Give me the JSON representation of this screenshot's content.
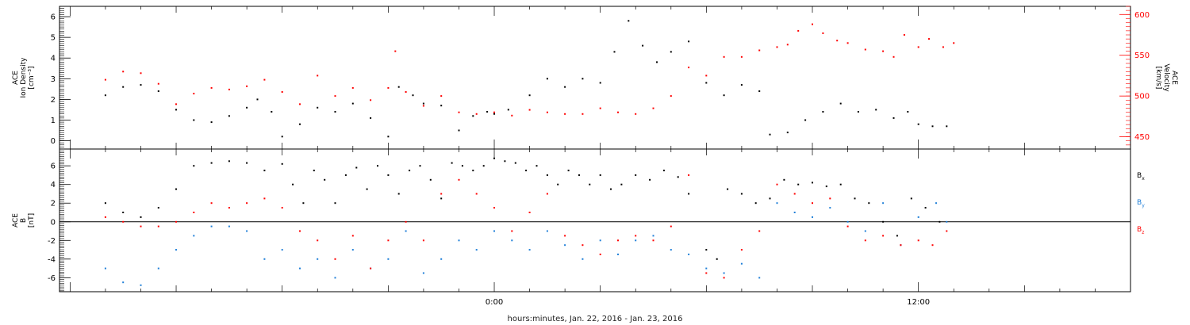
{
  "chart_data": [
    {
      "type": "scatter",
      "panel": "plasma",
      "ylabel_lines": [
        "ACE",
        "Ion Density",
        "[cm⁻³]"
      ],
      "y2label_lines": [
        "ACE",
        "Velocity",
        "[km/s]"
      ],
      "ylim": [
        -0.4,
        6.5
      ],
      "y2lim": [
        435,
        610
      ],
      "yticks": [
        0,
        1,
        2,
        3,
        4,
        5,
        6
      ],
      "y2ticks": [
        450,
        500,
        550,
        600
      ],
      "series": [
        {
          "axis": "left",
          "color": "#000000",
          "points": [
            [
              -11,
              2.2
            ],
            [
              -10.5,
              2.6
            ],
            [
              -10,
              2.7
            ],
            [
              -9.5,
              2.4
            ],
            [
              -9,
              1.5
            ],
            [
              -8.5,
              1.0
            ],
            [
              -8,
              0.9
            ],
            [
              -7.5,
              1.2
            ],
            [
              -7,
              1.6
            ],
            [
              -6.7,
              2.0
            ],
            [
              -6.3,
              1.4
            ],
            [
              -6,
              0.2
            ],
            [
              -5.5,
              0.8
            ],
            [
              -5,
              1.6
            ],
            [
              -4.5,
              1.4
            ],
            [
              -4,
              1.8
            ],
            [
              -3.5,
              1.1
            ],
            [
              -3,
              0.2
            ],
            [
              -2.7,
              2.6
            ],
            [
              -2.3,
              2.2
            ],
            [
              -2,
              1.8
            ],
            [
              -1.5,
              1.7
            ],
            [
              -1,
              0.5
            ],
            [
              -0.6,
              1.2
            ],
            [
              -0.2,
              1.4
            ],
            [
              0,
              1.3
            ],
            [
              0.4,
              1.5
            ],
            [
              1,
              2.2
            ],
            [
              1.5,
              3.0
            ],
            [
              2,
              2.6
            ],
            [
              2.5,
              3.0
            ],
            [
              3,
              2.8
            ],
            [
              3.4,
              4.3
            ],
            [
              3.8,
              5.8
            ],
            [
              4.2,
              4.6
            ],
            [
              4.6,
              3.8
            ],
            [
              5,
              4.3
            ],
            [
              5.5,
              4.8
            ],
            [
              6,
              2.8
            ],
            [
              6.5,
              2.2
            ],
            [
              7,
              2.7
            ],
            [
              7.5,
              2.4
            ],
            [
              7.8,
              0.3
            ],
            [
              8.3,
              0.4
            ],
            [
              8.8,
              1.0
            ],
            [
              9.3,
              1.4
            ],
            [
              9.8,
              1.8
            ],
            [
              10.3,
              1.4
            ],
            [
              10.8,
              1.5
            ],
            [
              11.3,
              1.1
            ],
            [
              11.7,
              1.4
            ],
            [
              12,
              0.8
            ],
            [
              12.4,
              0.7
            ],
            [
              12.8,
              0.7
            ]
          ]
        },
        {
          "axis": "right",
          "color": "#ff0000",
          "points": [
            [
              -11,
              520
            ],
            [
              -10.5,
              530
            ],
            [
              -10,
              528
            ],
            [
              -9.5,
              515
            ],
            [
              -9,
              490
            ],
            [
              -8.5,
              503
            ],
            [
              -8,
              510
            ],
            [
              -7.5,
              508
            ],
            [
              -7,
              512
            ],
            [
              -6.5,
              520
            ],
            [
              -6,
              505
            ],
            [
              -5.5,
              490
            ],
            [
              -5,
              525
            ],
            [
              -4.5,
              500
            ],
            [
              -4,
              510
            ],
            [
              -3.5,
              495
            ],
            [
              -3,
              510
            ],
            [
              -2.8,
              555
            ],
            [
              -2.5,
              505
            ],
            [
              -2,
              488
            ],
            [
              -1.5,
              500
            ],
            [
              -1,
              480
            ],
            [
              -0.5,
              478
            ],
            [
              0,
              480
            ],
            [
              0.5,
              476
            ],
            [
              1,
              483
            ],
            [
              1.5,
              480
            ],
            [
              2,
              478
            ],
            [
              2.5,
              478
            ],
            [
              3,
              485
            ],
            [
              3.5,
              480
            ],
            [
              4,
              478
            ],
            [
              4.5,
              485
            ],
            [
              5,
              500
            ],
            [
              5.5,
              535
            ],
            [
              6,
              525
            ],
            [
              6.5,
              548
            ],
            [
              7,
              548
            ],
            [
              7.5,
              556
            ],
            [
              8,
              560
            ],
            [
              8.3,
              563
            ],
            [
              8.6,
              580
            ],
            [
              9,
              588
            ],
            [
              9.3,
              577
            ],
            [
              9.7,
              568
            ],
            [
              10,
              565
            ],
            [
              10.5,
              557
            ],
            [
              11,
              555
            ],
            [
              11.3,
              548
            ],
            [
              11.6,
              575
            ],
            [
              12,
              560
            ],
            [
              12.3,
              570
            ],
            [
              12.7,
              560
            ],
            [
              13,
              565
            ]
          ]
        }
      ]
    },
    {
      "type": "scatter",
      "panel": "magnetic",
      "ylabel_lines": [
        "ACE",
        "B",
        "[nT]"
      ],
      "ylim": [
        -7.5,
        7.8
      ],
      "yticks": [
        -6,
        -4,
        -2,
        0,
        2,
        4,
        6
      ],
      "zero_line": true,
      "series": [
        {
          "name": "B",
          "sub": "x",
          "color": "#000000",
          "points": [
            [
              -11,
              2.0
            ],
            [
              -10.5,
              1.0
            ],
            [
              -10,
              0.5
            ],
            [
              -9.5,
              1.5
            ],
            [
              -9,
              3.5
            ],
            [
              -8.5,
              6.0
            ],
            [
              -8,
              6.3
            ],
            [
              -7.5,
              6.5
            ],
            [
              -7,
              6.3
            ],
            [
              -6.5,
              5.5
            ],
            [
              -6,
              6.2
            ],
            [
              -5.7,
              4.0
            ],
            [
              -5.4,
              2.0
            ],
            [
              -5.1,
              5.5
            ],
            [
              -4.8,
              4.5
            ],
            [
              -4.5,
              2.0
            ],
            [
              -4.2,
              5.0
            ],
            [
              -3.9,
              5.8
            ],
            [
              -3.6,
              3.5
            ],
            [
              -3.3,
              6.0
            ],
            [
              -3,
              5.0
            ],
            [
              -2.7,
              3.0
            ],
            [
              -2.4,
              5.5
            ],
            [
              -2.1,
              6.0
            ],
            [
              -1.8,
              4.5
            ],
            [
              -1.5,
              2.5
            ],
            [
              -1.2,
              6.3
            ],
            [
              -0.9,
              6.0
            ],
            [
              -0.6,
              5.5
            ],
            [
              -0.3,
              6.0
            ],
            [
              0,
              6.8
            ],
            [
              0.3,
              6.5
            ],
            [
              0.6,
              6.3
            ],
            [
              0.9,
              5.5
            ],
            [
              1.2,
              6.0
            ],
            [
              1.5,
              5.0
            ],
            [
              1.8,
              4.0
            ],
            [
              2.1,
              5.5
            ],
            [
              2.4,
              5.0
            ],
            [
              2.7,
              4.0
            ],
            [
              3,
              5.0
            ],
            [
              3.3,
              3.5
            ],
            [
              3.6,
              4.0
            ],
            [
              4,
              5.0
            ],
            [
              4.4,
              4.5
            ],
            [
              4.8,
              5.5
            ],
            [
              5.2,
              4.8
            ],
            [
              5.5,
              3.0
            ],
            [
              6,
              -3.0
            ],
            [
              6.3,
              -4.0
            ],
            [
              6.6,
              3.5
            ],
            [
              7,
              3.0
            ],
            [
              7.4,
              2.0
            ],
            [
              7.8,
              2.5
            ],
            [
              8.2,
              4.5
            ],
            [
              8.6,
              4.0
            ],
            [
              9,
              4.2
            ],
            [
              9.4,
              3.8
            ],
            [
              9.8,
              4.0
            ],
            [
              10.2,
              2.5
            ],
            [
              10.6,
              2.0
            ],
            [
              11,
              0.0
            ],
            [
              11.4,
              -1.5
            ],
            [
              11.8,
              2.5
            ],
            [
              12.2,
              1.5
            ],
            [
              12.6,
              0.0
            ]
          ]
        },
        {
          "name": "B",
          "sub": "y",
          "color": "#1f7fd8",
          "points": [
            [
              -11,
              -5.0
            ],
            [
              -10.5,
              -6.5
            ],
            [
              -10,
              -6.8
            ],
            [
              -9.5,
              -5.0
            ],
            [
              -9,
              -3.0
            ],
            [
              -8.5,
              -1.5
            ],
            [
              -8,
              -0.5
            ],
            [
              -7.5,
              -0.5
            ],
            [
              -7,
              -1.0
            ],
            [
              -6.5,
              -4.0
            ],
            [
              -6,
              -3.0
            ],
            [
              -5.5,
              -5.0
            ],
            [
              -5,
              -4.0
            ],
            [
              -4.5,
              -6.0
            ],
            [
              -4,
              -3.0
            ],
            [
              -3.5,
              -5.0
            ],
            [
              -3,
              -4.0
            ],
            [
              -2.5,
              -1.0
            ],
            [
              -2,
              -5.5
            ],
            [
              -1.5,
              -4.0
            ],
            [
              -1,
              -2.0
            ],
            [
              -0.5,
              -3.0
            ],
            [
              0,
              -1.0
            ],
            [
              0.5,
              -2.0
            ],
            [
              1,
              -3.0
            ],
            [
              1.5,
              -1.0
            ],
            [
              2,
              -2.5
            ],
            [
              2.5,
              -4.0
            ],
            [
              3,
              -2.0
            ],
            [
              3.5,
              -3.5
            ],
            [
              4,
              -2.0
            ],
            [
              4.5,
              -1.5
            ],
            [
              5,
              -3.0
            ],
            [
              5.5,
              -3.5
            ],
            [
              6,
              -5.0
            ],
            [
              6.5,
              -5.5
            ],
            [
              7,
              -4.5
            ],
            [
              7.5,
              -6.0
            ],
            [
              8,
              2.0
            ],
            [
              8.5,
              1.0
            ],
            [
              9,
              0.5
            ],
            [
              9.5,
              1.5
            ],
            [
              10,
              0.0
            ],
            [
              10.5,
              -1.0
            ],
            [
              11,
              2.0
            ],
            [
              11.5,
              -2.5
            ],
            [
              12,
              0.5
            ],
            [
              12.5,
              2.0
            ],
            [
              12.8,
              0.0
            ]
          ]
        },
        {
          "name": "B",
          "sub": "z",
          "color": "#ff0000",
          "points": [
            [
              -11,
              0.5
            ],
            [
              -10.5,
              0.0
            ],
            [
              -10,
              -0.5
            ],
            [
              -9.5,
              -0.5
            ],
            [
              -9,
              0.0
            ],
            [
              -8.5,
              1.0
            ],
            [
              -8,
              2.0
            ],
            [
              -7.5,
              1.5
            ],
            [
              -7,
              2.0
            ],
            [
              -6.5,
              2.5
            ],
            [
              -6,
              1.5
            ],
            [
              -5.5,
              -1.0
            ],
            [
              -5,
              -2.0
            ],
            [
              -4.5,
              -4.0
            ],
            [
              -4,
              -1.5
            ],
            [
              -3.5,
              -5.0
            ],
            [
              -3,
              -2.0
            ],
            [
              -2.5,
              0.0
            ],
            [
              -2,
              -2.0
            ],
            [
              -1.5,
              3.0
            ],
            [
              -1,
              4.5
            ],
            [
              -0.5,
              3.0
            ],
            [
              0,
              1.5
            ],
            [
              0.5,
              -1.0
            ],
            [
              1,
              1.0
            ],
            [
              1.5,
              3.0
            ],
            [
              2,
              -1.5
            ],
            [
              2.5,
              -2.5
            ],
            [
              3,
              -3.5
            ],
            [
              3.5,
              -2.0
            ],
            [
              4,
              -1.5
            ],
            [
              4.5,
              -2.0
            ],
            [
              5,
              -0.5
            ],
            [
              5.5,
              5.0
            ],
            [
              6,
              -5.5
            ],
            [
              6.5,
              -6.0
            ],
            [
              7,
              -3.0
            ],
            [
              7.5,
              -1.0
            ],
            [
              8,
              4.0
            ],
            [
              8.5,
              3.0
            ],
            [
              9,
              2.0
            ],
            [
              9.5,
              2.5
            ],
            [
              10,
              -0.5
            ],
            [
              10.5,
              -2.0
            ],
            [
              11,
              -1.5
            ],
            [
              11.5,
              -2.5
            ],
            [
              12,
              -2.0
            ],
            [
              12.4,
              -2.5
            ],
            [
              12.8,
              -1.0
            ]
          ]
        }
      ]
    }
  ],
  "axis": {
    "xlim": [
      -12.3,
      18.0
    ],
    "xticks": [
      {
        "value": 0,
        "label": "0:00"
      },
      {
        "value": 12,
        "label": "12:00"
      }
    ],
    "xlabel": "hours:minutes, Jan. 22, 2016 - Jan. 23, 2016"
  },
  "colors": {
    "black": "#000000",
    "red": "#ff0000",
    "blue": "#1f7fd8"
  }
}
